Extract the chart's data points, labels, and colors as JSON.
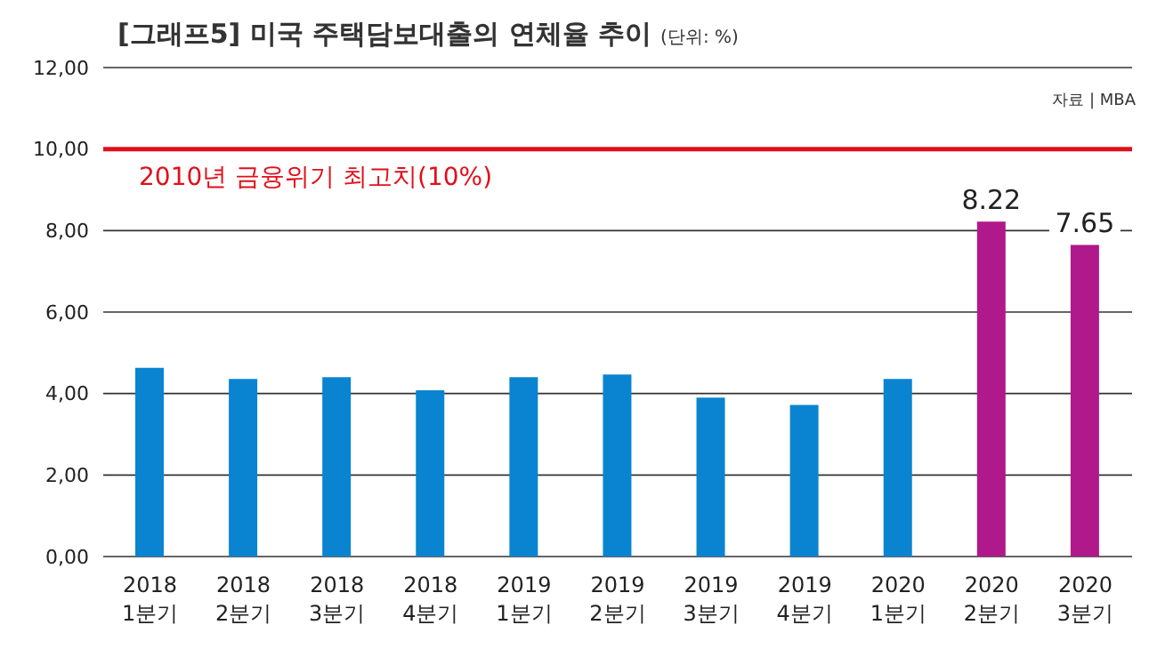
{
  "chart_data": {
    "type": "bar",
    "title": "[그래프5] 미국 주택담보대출의 연체율 추이",
    "subtitle": "(단위: %)",
    "categories": [
      "2018\n1분기",
      "2018\n2분기",
      "2018\n3분기",
      "2018\n4분기",
      "2019\n1분기",
      "2019\n2분기",
      "2019\n3분기",
      "2019\n4분기",
      "2020\n1분기",
      "2020\n2분기",
      "2020\n3분기"
    ],
    "values": [
      4.63,
      4.36,
      4.4,
      4.08,
      4.4,
      4.47,
      3.9,
      3.72,
      4.36,
      8.22,
      7.65
    ],
    "colors": [
      "#0a84d0",
      "#0a84d0",
      "#0a84d0",
      "#0a84d0",
      "#0a84d0",
      "#0a84d0",
      "#0a84d0",
      "#0a84d0",
      "#0a84d0",
      "#b0198c",
      "#b0198c"
    ],
    "value_labels": [
      null,
      null,
      null,
      null,
      null,
      null,
      null,
      null,
      null,
      "8.22",
      "7.65"
    ],
    "ylim": [
      0,
      12
    ],
    "yticks": [
      {
        "value": 0,
        "label": "0,00"
      },
      {
        "value": 2,
        "label": "2,00"
      },
      {
        "value": 4,
        "label": "4,00"
      },
      {
        "value": 6,
        "label": "6,00"
      },
      {
        "value": 8,
        "label": "8,00"
      },
      {
        "value": 10,
        "label": "10,00"
      },
      {
        "value": 12,
        "label": "12,00"
      }
    ],
    "grid": "y",
    "ref_lines": [
      {
        "axis": "y",
        "value": 10,
        "label": "2010년 금융위기 최고치(10%)",
        "color": "#e0101a"
      }
    ],
    "annotations": [
      "자료 | MBA"
    ]
  }
}
